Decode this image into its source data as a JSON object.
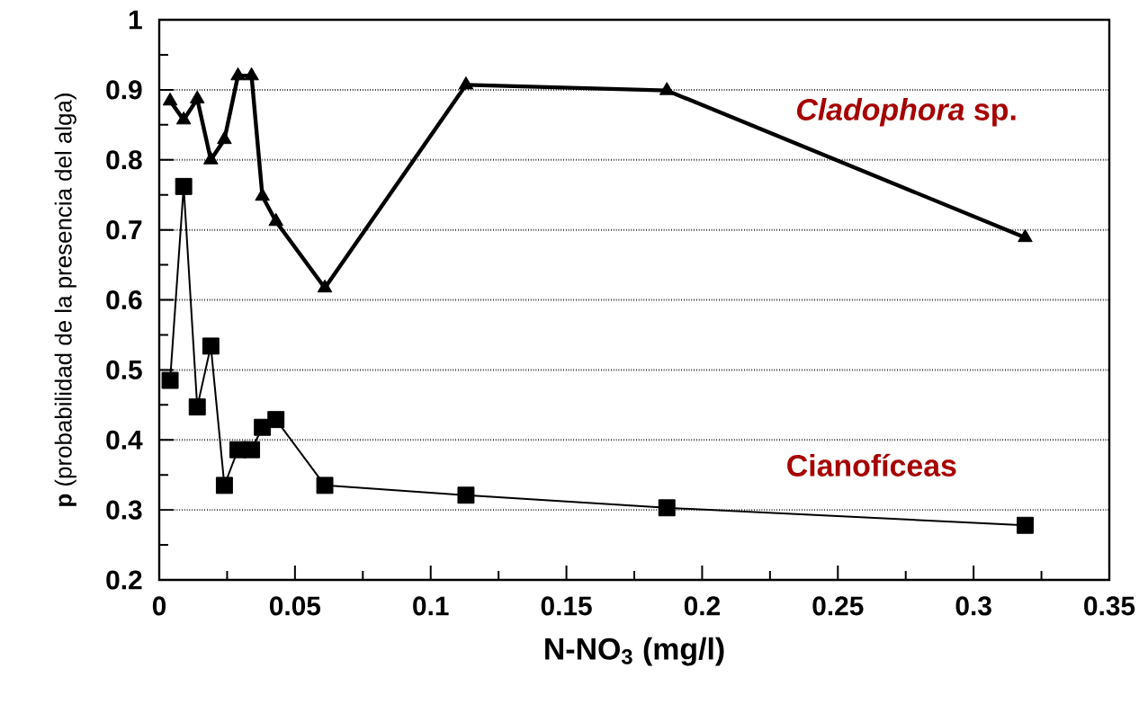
{
  "chart_data": {
    "type": "line",
    "xlabel": "N-NO$_{3}$  (mg/l)",
    "ylabel": "**p**  (probabilidad de la presencia del alga)",
    "xlim": [
      0,
      0.35
    ],
    "xticks": [
      0,
      0.05,
      0.1,
      0.15,
      0.2,
      0.25,
      0.3,
      0.35
    ],
    "ylim": [
      0.2,
      1
    ],
    "yticks": [
      0.2,
      0.3,
      0.4,
      0.5,
      0.6,
      0.7,
      0.8,
      0.9,
      1
    ],
    "grid": "y",
    "series": [
      {
        "name": "*Cladophora* sp.",
        "color": "#000000",
        "marker": "triangle",
        "x": [
          0.004,
          0.009,
          0.014,
          0.019,
          0.024,
          0.029,
          0.034,
          0.038,
          0.043,
          0.061,
          0.113,
          0.187,
          0.319
        ],
        "values": [
          0.884,
          0.857,
          0.887,
          0.8,
          0.829,
          0.92,
          0.92,
          0.748,
          0.712,
          0.617,
          0.907,
          0.899,
          0.689
        ]
      },
      {
        "name": "Cianofíceas",
        "color": "#000000",
        "marker": "square",
        "x": [
          0.004,
          0.009,
          0.014,
          0.019,
          0.024,
          0.029,
          0.034,
          0.038,
          0.043,
          0.061,
          0.113,
          0.187,
          0.319
        ],
        "values": [
          0.485,
          0.762,
          0.447,
          0.534,
          0.335,
          0.386,
          0.386,
          0.418,
          0.429,
          0.335,
          0.321,
          0.303,
          0.278
        ]
      }
    ]
  }
}
